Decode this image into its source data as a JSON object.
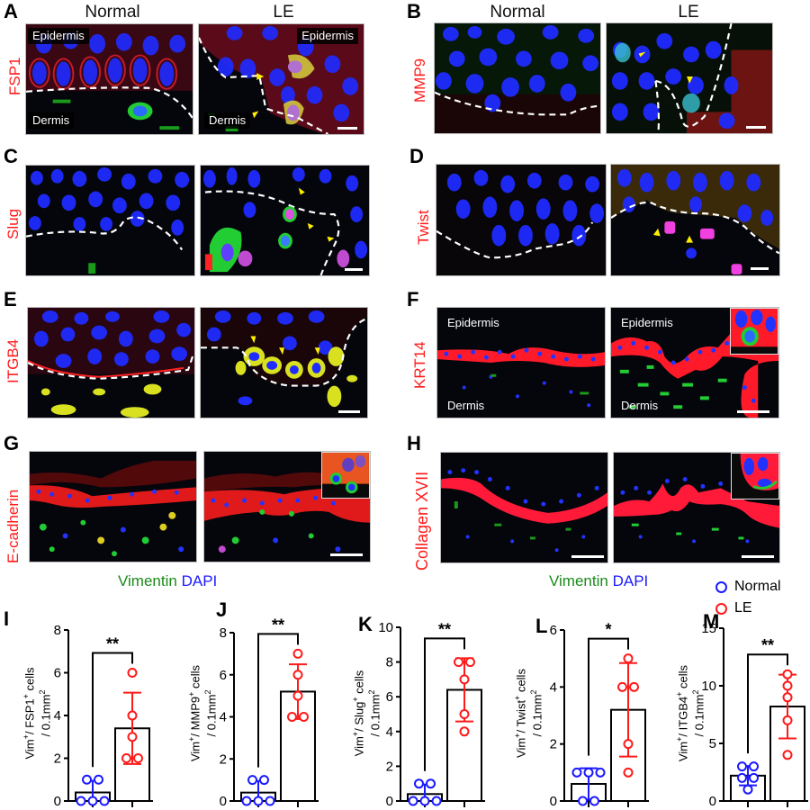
{
  "figure": {
    "column_headers": {
      "normal": "Normal",
      "le": "LE"
    },
    "tissue_labels": {
      "epidermis": "Epidermis",
      "dermis": "Dermis"
    },
    "counterstain_caption": {
      "vimentin": "Vimentin",
      "dapi": "DAPI"
    },
    "legend": [
      {
        "label": "Normal",
        "color": "#1a1aff"
      },
      {
        "label": "LE",
        "color": "#ff1a1a"
      }
    ],
    "image_panels": [
      {
        "letter": "A",
        "stain": "FSP1"
      },
      {
        "letter": "B",
        "stain": "MMP9"
      },
      {
        "letter": "C",
        "stain": "Slug"
      },
      {
        "letter": "D",
        "stain": "Twist"
      },
      {
        "letter": "E",
        "stain": "ITGB4"
      },
      {
        "letter": "F",
        "stain": "KRT14"
      },
      {
        "letter": "G",
        "stain": "E-cadherin"
      },
      {
        "letter": "H",
        "stain": "Collagen XVII"
      }
    ],
    "colors": {
      "normal": "#1a1aff",
      "le": "#ff1a1a",
      "stain_label": "#ff1a1a",
      "vimentin": "#1a8a1a",
      "dapi": "#1a1aff"
    }
  },
  "chart_data": [
    {
      "panel": "I",
      "type": "bar",
      "title": "",
      "ylabel_line1": "Vim+/ FSP1+ cells",
      "ylabel_line2": "/ 0.1mm2",
      "marker": "FSP1",
      "categories": [
        "Normal",
        "LE"
      ],
      "ylim": [
        0,
        8
      ],
      "yticks": [
        0,
        2,
        4,
        6,
        8
      ],
      "significance": "**",
      "series": [
        {
          "name": "Normal",
          "mean": 0.4,
          "sd": 0.55,
          "points": [
            0,
            0,
            0,
            1,
            1
          ]
        },
        {
          "name": "LE",
          "mean": 3.4,
          "sd": 1.67,
          "points": [
            2,
            2,
            3,
            4,
            6
          ]
        }
      ]
    },
    {
      "panel": "J",
      "type": "bar",
      "title": "",
      "ylabel_line1": "Vim+/ MMP9+ cells",
      "ylabel_line2": "/ 0.1mm2",
      "marker": "MMP9",
      "categories": [
        "Normal",
        "LE"
      ],
      "ylim": [
        0,
        8
      ],
      "yticks": [
        0,
        2,
        4,
        6,
        8
      ],
      "significance": "**",
      "series": [
        {
          "name": "Normal",
          "mean": 0.4,
          "sd": 0.55,
          "points": [
            0,
            0,
            0,
            1,
            1
          ]
        },
        {
          "name": "LE",
          "mean": 5.2,
          "sd": 1.3,
          "points": [
            4,
            4,
            5,
            6,
            7
          ]
        }
      ]
    },
    {
      "panel": "K",
      "type": "bar",
      "title": "",
      "ylabel_line1": "Vim+/ Slug+ cells",
      "ylabel_line2": "/ 0.1mm2",
      "marker": "Slug",
      "categories": [
        "Normal",
        "LE"
      ],
      "ylim": [
        0,
        10
      ],
      "yticks": [
        0,
        2,
        4,
        6,
        8,
        10
      ],
      "significance": "**",
      "series": [
        {
          "name": "Normal",
          "mean": 0.4,
          "sd": 0.55,
          "points": [
            0,
            0,
            0,
            1,
            1
          ]
        },
        {
          "name": "LE",
          "mean": 6.4,
          "sd": 1.82,
          "points": [
            4,
            5,
            7,
            8,
            8
          ]
        }
      ]
    },
    {
      "panel": "L",
      "type": "bar",
      "title": "",
      "ylabel_line1": "Vim+/ Twist+ cells",
      "ylabel_line2": "/ 0.1mm2",
      "marker": "Twist",
      "categories": [
        "Normal",
        "LE"
      ],
      "ylim": [
        0,
        6
      ],
      "yticks": [
        0,
        2,
        4,
        6
      ],
      "significance": "*",
      "series": [
        {
          "name": "Normal",
          "mean": 0.6,
          "sd": 0.55,
          "points": [
            0,
            0,
            1,
            1,
            1
          ]
        },
        {
          "name": "LE",
          "mean": 3.2,
          "sd": 1.64,
          "points": [
            1,
            2,
            4,
            4,
            5
          ]
        }
      ]
    },
    {
      "panel": "M",
      "type": "bar",
      "title": "",
      "ylabel_line1": "Vim+/ ITGB4+ cells",
      "ylabel_line2": "/ 0.1mm2",
      "marker": "ITGB4",
      "categories": [
        "Normal",
        "LE"
      ],
      "ylim": [
        0,
        15
      ],
      "yticks": [
        0,
        5,
        10,
        15
      ],
      "significance": "**",
      "series": [
        {
          "name": "Normal",
          "mean": 2.2,
          "sd": 0.84,
          "points": [
            1,
            2,
            2,
            3,
            3
          ]
        },
        {
          "name": "LE",
          "mean": 8.2,
          "sd": 2.77,
          "points": [
            4,
            7,
            9,
            10,
            11
          ]
        }
      ]
    }
  ]
}
